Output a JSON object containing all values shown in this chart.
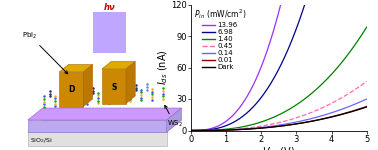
{
  "xlabel_text": "$V_{ds}$",
  "xlabel_units": "(V)",
  "ylabel_text": "$I_{ds}$",
  "ylabel_units": "(nA)",
  "legend_title": "$P_{in}$ (mW/cm$^2$)",
  "xlim": [
    0,
    5
  ],
  "ylim": [
    0,
    120
  ],
  "yticks": [
    0,
    30,
    60,
    90,
    120
  ],
  "xticks": [
    0,
    1,
    2,
    3,
    4,
    5
  ],
  "series": [
    {
      "label": "13.96",
      "color": "#9B30FF",
      "power": 13.96,
      "ls": "-"
    },
    {
      "label": "6.98",
      "color": "#00008B",
      "power": 6.98,
      "ls": "-"
    },
    {
      "label": "1.40",
      "color": "#008000",
      "power": 1.4,
      "ls": "-"
    },
    {
      "label": "0.45",
      "color": "#FF69B4",
      "power": 0.45,
      "ls": "--"
    },
    {
      "label": "0.14",
      "color": "#6666FF",
      "power": 0.14,
      "ls": "-"
    },
    {
      "label": "0.01",
      "color": "#8B0000",
      "power": 0.01,
      "ls": "-"
    },
    {
      "label": "Dark",
      "color": "#000000",
      "power": 0.0,
      "ls": "-"
    }
  ],
  "schematic": {
    "platform_color": "#CC99FF",
    "platform_edge": "#9966CC",
    "substrate_color": "#CCCCCC",
    "substrate_edge": "#AAAAAA",
    "electrode_color": "#CC8800",
    "electrode_edge": "#AA6600",
    "light_color": "#AA88FF",
    "hv_color": "#CC0000",
    "atom_colors_ws2": [
      "#00AA00",
      "#3355FF",
      "#FFAA00"
    ],
    "atom_colors_pbi2": [
      "#223366",
      "#6688BB"
    ]
  },
  "background_color": "#ffffff"
}
